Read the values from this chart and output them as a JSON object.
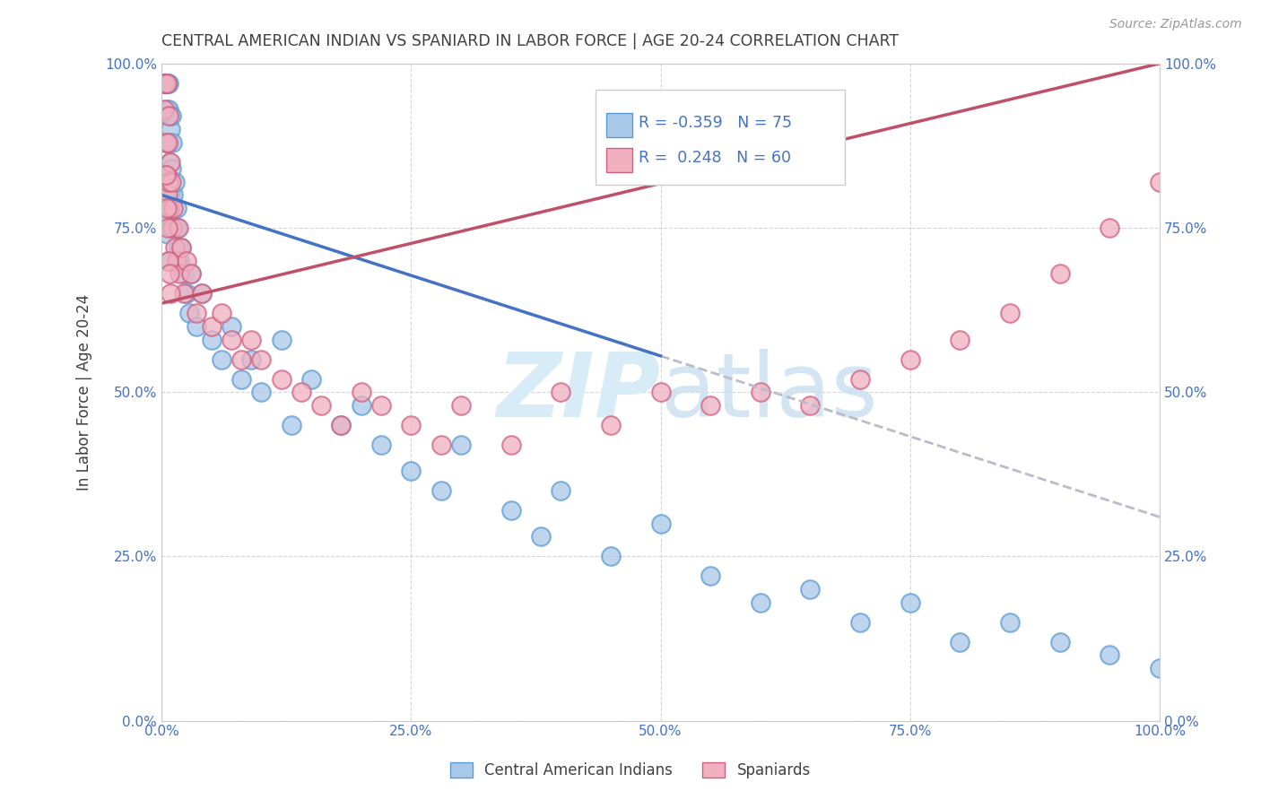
{
  "title": "CENTRAL AMERICAN INDIAN VS SPANIARD IN LABOR FORCE | AGE 20-24 CORRELATION CHART",
  "source": "Source: ZipAtlas.com",
  "ylabel": "In Labor Force | Age 20-24",
  "legend_label_1": "Central American Indians",
  "legend_label_2": "Spaniards",
  "r1": -0.359,
  "n1": 75,
  "r2": 0.248,
  "n2": 60,
  "xticks": [
    0.0,
    0.25,
    0.5,
    0.75,
    1.0
  ],
  "yticks": [
    0.0,
    0.25,
    0.5,
    0.75,
    1.0
  ],
  "xticklabels": [
    "0.0%",
    "25.0%",
    "50.0%",
    "75.0%",
    "100.0%"
  ],
  "yticklabels": [
    "0.0%",
    "25.0%",
    "50.0%",
    "75.0%",
    "100.0%"
  ],
  "xlim": [
    0.0,
    1.0
  ],
  "ylim": [
    0.0,
    1.0
  ],
  "blue_color": "#A8C8E8",
  "pink_color": "#F0B0C0",
  "blue_edge": "#5B9BD5",
  "pink_edge": "#D06080",
  "trend_blue": "#4472C4",
  "trend_pink": "#C0506A",
  "trend_gray": "#BBBBCC",
  "background": "#FFFFFF",
  "grid_color": "#CCCCCC",
  "title_color": "#404040",
  "axis_label_color": "#4472C4",
  "watermark_color": "#D8ECF8",
  "blue_line_x0": 0.0,
  "blue_line_y0": 0.8,
  "blue_line_x1": 0.5,
  "blue_line_y1": 0.555,
  "gray_line_x0": 0.5,
  "gray_line_y0": 0.555,
  "gray_line_x1": 1.0,
  "gray_line_y1": 0.31,
  "pink_line_x0": 0.0,
  "pink_line_y0": 0.635,
  "pink_line_x1": 1.0,
  "pink_line_y1": 1.0,
  "blue_scatter_x": [
    0.002,
    0.003,
    0.003,
    0.004,
    0.004,
    0.004,
    0.005,
    0.005,
    0.005,
    0.006,
    0.006,
    0.006,
    0.007,
    0.007,
    0.007,
    0.007,
    0.008,
    0.008,
    0.008,
    0.009,
    0.009,
    0.01,
    0.01,
    0.01,
    0.011,
    0.012,
    0.013,
    0.014,
    0.015,
    0.015,
    0.016,
    0.017,
    0.018,
    0.02,
    0.022,
    0.025,
    0.028,
    0.03,
    0.035,
    0.04,
    0.05,
    0.06,
    0.07,
    0.08,
    0.09,
    0.1,
    0.12,
    0.13,
    0.15,
    0.18,
    0.2,
    0.22,
    0.25,
    0.28,
    0.3,
    0.35,
    0.38,
    0.4,
    0.45,
    0.5,
    0.55,
    0.6,
    0.65,
    0.7,
    0.75,
    0.8,
    0.85,
    0.9,
    0.95,
    1.0,
    0.003,
    0.004,
    0.005,
    0.006,
    0.007
  ],
  "blue_scatter_y": [
    0.97,
    0.97,
    0.97,
    0.97,
    0.97,
    0.97,
    0.97,
    0.93,
    0.88,
    0.97,
    0.88,
    0.82,
    0.97,
    0.93,
    0.88,
    0.82,
    0.92,
    0.85,
    0.78,
    0.9,
    0.8,
    0.92,
    0.84,
    0.75,
    0.88,
    0.8,
    0.82,
    0.75,
    0.78,
    0.7,
    0.75,
    0.72,
    0.7,
    0.72,
    0.68,
    0.65,
    0.62,
    0.68,
    0.6,
    0.65,
    0.58,
    0.55,
    0.6,
    0.52,
    0.55,
    0.5,
    0.58,
    0.45,
    0.52,
    0.45,
    0.48,
    0.42,
    0.38,
    0.35,
    0.42,
    0.32,
    0.28,
    0.35,
    0.25,
    0.3,
    0.22,
    0.18,
    0.2,
    0.15,
    0.18,
    0.12,
    0.15,
    0.12,
    0.1,
    0.08,
    0.83,
    0.8,
    0.77,
    0.74,
    0.7
  ],
  "pink_scatter_x": [
    0.003,
    0.003,
    0.004,
    0.004,
    0.005,
    0.005,
    0.006,
    0.006,
    0.007,
    0.007,
    0.008,
    0.009,
    0.01,
    0.011,
    0.012,
    0.013,
    0.015,
    0.017,
    0.018,
    0.02,
    0.022,
    0.025,
    0.03,
    0.035,
    0.04,
    0.05,
    0.06,
    0.07,
    0.08,
    0.09,
    0.1,
    0.12,
    0.14,
    0.16,
    0.18,
    0.2,
    0.22,
    0.25,
    0.28,
    0.3,
    0.35,
    0.4,
    0.45,
    0.5,
    0.55,
    0.6,
    0.65,
    0.7,
    0.75,
    0.8,
    0.85,
    0.9,
    0.95,
    1.0,
    0.004,
    0.005,
    0.006,
    0.007,
    0.008,
    0.009
  ],
  "pink_scatter_y": [
    0.97,
    0.93,
    0.97,
    0.88,
    0.97,
    0.83,
    0.88,
    0.8,
    0.92,
    0.82,
    0.78,
    0.85,
    0.82,
    0.75,
    0.78,
    0.72,
    0.7,
    0.75,
    0.68,
    0.72,
    0.65,
    0.7,
    0.68,
    0.62,
    0.65,
    0.6,
    0.62,
    0.58,
    0.55,
    0.58,
    0.55,
    0.52,
    0.5,
    0.48,
    0.45,
    0.5,
    0.48,
    0.45,
    0.42,
    0.48,
    0.42,
    0.5,
    0.45,
    0.5,
    0.48,
    0.5,
    0.48,
    0.52,
    0.55,
    0.58,
    0.62,
    0.68,
    0.75,
    0.82,
    0.83,
    0.78,
    0.75,
    0.7,
    0.68,
    0.65
  ]
}
